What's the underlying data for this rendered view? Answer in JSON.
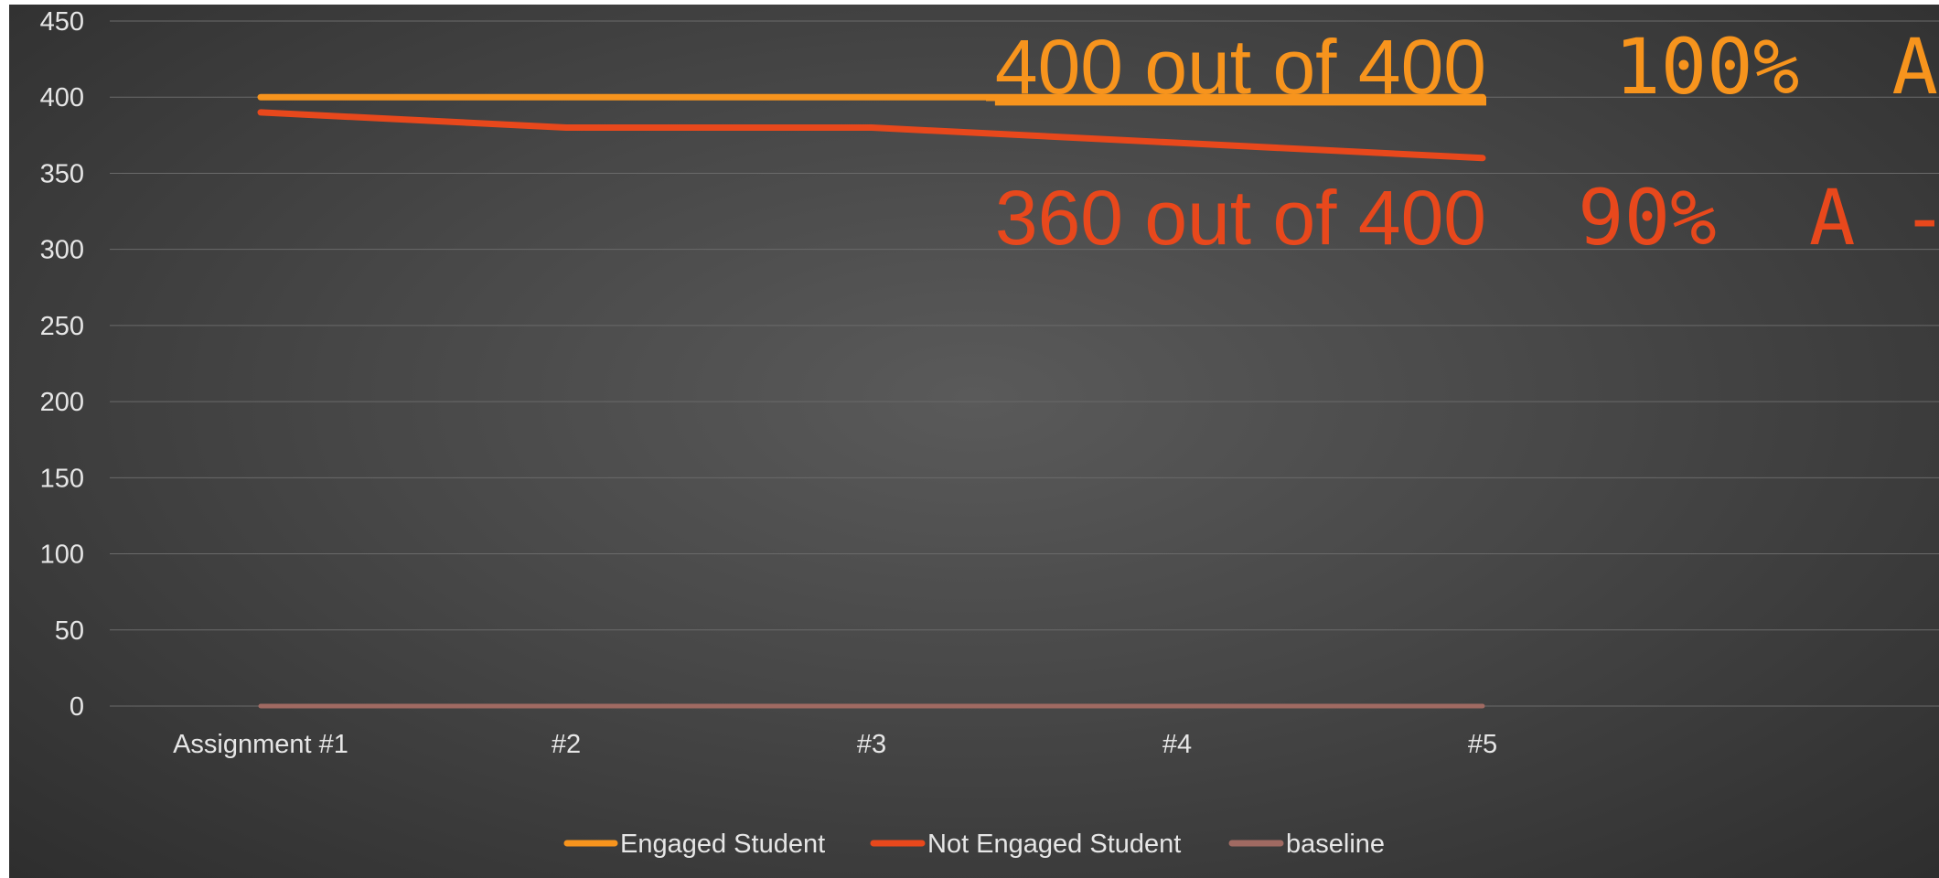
{
  "chart_data": {
    "type": "line",
    "categories": [
      "Assignment #1",
      "#2",
      "#3",
      "#4",
      "#5"
    ],
    "series": [
      {
        "name": "Engaged Student",
        "values": [
          400,
          400,
          400,
          400,
          400
        ],
        "color": "#f7941d"
      },
      {
        "name": "Not Engaged Student",
        "values": [
          390,
          380,
          380,
          370,
          360
        ],
        "color": "#e8481c"
      },
      {
        "name": "baseline",
        "values": [
          0,
          0,
          0,
          0,
          0
        ],
        "color": "#a06a62"
      }
    ],
    "ylim": [
      0,
      450
    ],
    "yticks": [
      0,
      50,
      100,
      150,
      200,
      250,
      300,
      350,
      400,
      450
    ],
    "grid": true,
    "legend_position": "bottom",
    "annotations": [
      {
        "text": "400 out of 400",
        "grade": "100%  A",
        "color": "#f7941d",
        "underline": true
      },
      {
        "text": "360 out of 400",
        "grade": "90%  A -",
        "color": "#e8481c",
        "underline": false
      }
    ]
  }
}
